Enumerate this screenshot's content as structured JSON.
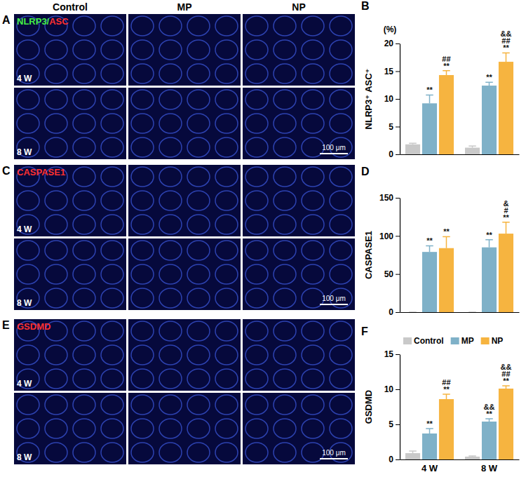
{
  "image_panels": [
    {
      "letter": "A",
      "columns": [
        "Control",
        "MP",
        "NP"
      ],
      "rows": [
        "4 W",
        "8 W"
      ],
      "stain": [
        {
          "text": "NLRP3/",
          "color": "#44ee44"
        },
        {
          "text": "ASC",
          "color": "#ff3030"
        }
      ],
      "scale_bar": "100 μm"
    },
    {
      "letter": "C",
      "rows": [
        "4 W",
        "8 W"
      ],
      "stain": [
        {
          "text": "CASPASE1",
          "color": "#ff3030"
        }
      ],
      "scale_bar": "100 μm"
    },
    {
      "letter": "E",
      "rows": [
        "4 W",
        "8 W"
      ],
      "stain": [
        {
          "text": "GSDMD",
          "color": "#ff3030"
        }
      ],
      "scale_bar": "100 μm"
    }
  ],
  "chart_data": [
    {
      "type": "bar",
      "title": "B",
      "ylabel": "NLRP3⁺ ASC⁺",
      "ylabel_unit": "(%)",
      "categories": [
        null,
        null
      ],
      "tick_labels": "y",
      "ylim": [
        0,
        20
      ],
      "yticks": [
        0,
        5,
        10,
        15,
        20
      ],
      "series": [
        {
          "color": "#c9c9c9",
          "values": [
            1.8,
            1.2
          ],
          "errors": [
            0.2,
            0.3
          ],
          "annotations": [
            [],
            []
          ]
        },
        {
          "color": "#7fb1c8",
          "values": [
            9.2,
            12.4
          ],
          "errors": [
            1.5,
            0.6
          ],
          "annotations": [
            [
              "**"
            ],
            [
              "**"
            ]
          ]
        },
        {
          "color": "#f6b440",
          "values": [
            14.3,
            16.7
          ],
          "errors": [
            0.8,
            1.6
          ],
          "annotations": [
            [
              "##",
              "**"
            ],
            [
              "&&",
              "##",
              "**"
            ]
          ]
        }
      ]
    },
    {
      "type": "bar",
      "title": "D",
      "ylabel": "CASPASE1",
      "categories": [
        null,
        null
      ],
      "tick_labels": "y",
      "ylim": [
        0,
        150
      ],
      "yticks": [
        0,
        50,
        100,
        150
      ],
      "series": [
        {
          "color": "#c9c9c9",
          "values": [
            0,
            0
          ],
          "errors": [
            0,
            0
          ],
          "annotations": [
            [],
            []
          ]
        },
        {
          "color": "#7fb1c8",
          "values": [
            79,
            85
          ],
          "errors": [
            8,
            10
          ],
          "annotations": [
            [
              "**"
            ],
            [
              "**"
            ]
          ]
        },
        {
          "color": "#f6b440",
          "values": [
            84,
            103
          ],
          "errors": [
            15,
            15
          ],
          "annotations": [
            [
              "**"
            ],
            [
              "&",
              "#",
              "**"
            ]
          ]
        }
      ]
    },
    {
      "type": "bar",
      "title": "F",
      "ylabel": "GSDMD",
      "categories": [
        "4 W",
        "8 W"
      ],
      "legend": "top",
      "ylim": [
        0,
        15
      ],
      "yticks": [
        0,
        5,
        10,
        15
      ],
      "series": [
        {
          "name": "Control",
          "color": "#c9c9c9",
          "values": [
            0.9,
            0.4
          ],
          "errors": [
            0.3,
            0.1
          ],
          "annotations": [
            [],
            []
          ]
        },
        {
          "name": "MP",
          "color": "#7fb1c8",
          "values": [
            3.7,
            5.4
          ],
          "errors": [
            0.7,
            0.4
          ],
          "annotations": [
            [
              "**"
            ],
            [
              "&&",
              "**"
            ]
          ]
        },
        {
          "name": "NP",
          "color": "#f6b440",
          "values": [
            8.6,
            10.1
          ],
          "errors": [
            0.7,
            0.4
          ],
          "annotations": [
            [
              "##",
              "**"
            ],
            [
              "&&",
              "##",
              "**"
            ]
          ]
        }
      ]
    }
  ]
}
